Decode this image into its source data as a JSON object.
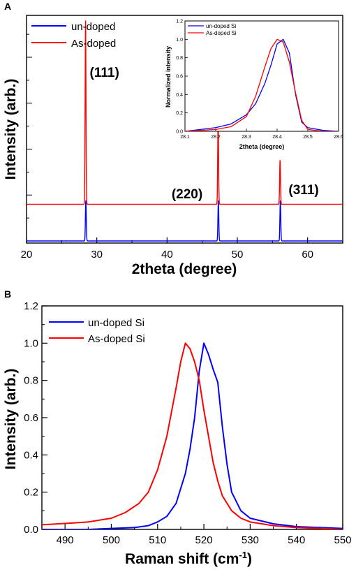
{
  "chart_data": [
    {
      "panel": "A",
      "type": "line",
      "xlabel": "2theta (degree)",
      "ylabel": "Intensity (arb.)",
      "xlim": [
        20,
        65
      ],
      "xticks": [
        "20",
        "30",
        "40",
        "50",
        "60"
      ],
      "yticks_labeled": false,
      "legend": {
        "position": "top-left",
        "entries": [
          "un-doped",
          "As-doped"
        ]
      },
      "annotations": [
        {
          "text": "(111)",
          "x": 28.4
        },
        {
          "text": "(220)",
          "x": 47.3
        },
        {
          "text": "(311)",
          "x": 56.1
        }
      ],
      "series": [
        {
          "name": "un-doped",
          "color": "#0000ff",
          "baseline": 0.0,
          "peaks": [
            {
              "x": 28.44,
              "height": 0.22
            },
            {
              "x": 47.3,
              "height": 0.22
            },
            {
              "x": 56.12,
              "height": 0.22
            }
          ]
        },
        {
          "name": "As-doped",
          "color": "#ff0000",
          "baseline": 0.2,
          "peaks": [
            {
              "x": 28.4,
              "height": 1.0
            },
            {
              "x": 47.27,
              "height": 0.48
            },
            {
              "x": 56.08,
              "height": 0.24
            }
          ]
        }
      ],
      "inset": {
        "type": "line",
        "xlabel": "2theta (degree)",
        "ylabel": "Normalized intensity",
        "xlim": [
          28.1,
          28.6
        ],
        "ylim": [
          0.0,
          1.2
        ],
        "xticks": [
          "28.1",
          "28.2",
          "28.3",
          "28.4",
          "28.5",
          "28.6"
        ],
        "yticks": [
          "0.0",
          "0.2",
          "0.4",
          "0.6",
          "0.8",
          "1.0",
          "1.2"
        ],
        "legend": {
          "position": "top-left",
          "entries": [
            "un-doped Si",
            "As-doped Si"
          ]
        },
        "series": [
          {
            "name": "un-doped Si",
            "color": "#0000ff",
            "x": [
              28.1,
              28.15,
              28.2,
              28.25,
              28.3,
              28.33,
              28.36,
              28.38,
              28.4,
              28.42,
              28.44,
              28.46,
              28.48,
              28.5,
              28.55,
              28.6
            ],
            "y": [
              0.0,
              0.02,
              0.04,
              0.08,
              0.18,
              0.3,
              0.52,
              0.72,
              0.95,
              1.0,
              0.85,
              0.4,
              0.1,
              0.04,
              0.01,
              0.0
            ]
          },
          {
            "name": "As-doped Si",
            "color": "#ff0000",
            "x": [
              28.1,
              28.15,
              28.2,
              28.25,
              28.3,
              28.33,
              28.36,
              28.38,
              28.4,
              28.42,
              28.44,
              28.46,
              28.48,
              28.5,
              28.55,
              28.6
            ],
            "y": [
              0.0,
              0.01,
              0.02,
              0.05,
              0.16,
              0.38,
              0.7,
              0.9,
              1.0,
              0.97,
              0.75,
              0.42,
              0.12,
              0.02,
              0.0,
              0.0
            ]
          }
        ]
      }
    },
    {
      "panel": "B",
      "type": "line",
      "xlabel": "Raman shift (cm",
      "xlabel_sup": "-1",
      "xlabel_suffix": ")",
      "ylabel": "Intensity (arb.)",
      "xlim": [
        485,
        550
      ],
      "ylim": [
        0.0,
        1.2
      ],
      "xticks": [
        "490",
        "500",
        "510",
        "520",
        "530",
        "540",
        "550"
      ],
      "yticks": [
        "0.0",
        "0.2",
        "0.4",
        "0.6",
        "0.8",
        "1.0",
        "1.2"
      ],
      "legend": {
        "position": "top-left",
        "entries": [
          "un-doped Si",
          "As-doped Si"
        ]
      },
      "series": [
        {
          "name": "un-doped Si",
          "color": "#0000ff",
          "x": [
            485,
            490,
            495,
            500,
            505,
            508,
            510,
            512,
            514,
            516,
            517,
            518,
            519,
            520,
            521,
            522,
            523,
            524,
            525,
            526,
            528,
            530,
            535,
            540,
            545,
            550
          ],
          "y": [
            0.0,
            0.0,
            0.0,
            0.005,
            0.01,
            0.02,
            0.04,
            0.07,
            0.14,
            0.3,
            0.43,
            0.6,
            0.85,
            1.0,
            0.94,
            0.86,
            0.79,
            0.55,
            0.35,
            0.2,
            0.1,
            0.06,
            0.03,
            0.015,
            0.01,
            0.005
          ]
        },
        {
          "name": "As-doped Si",
          "color": "#ff0000",
          "x": [
            485,
            490,
            495,
            500,
            503,
            506,
            508,
            510,
            512,
            514,
            515,
            516,
            517,
            518,
            519,
            520,
            521,
            522,
            523,
            524,
            526,
            528,
            530,
            535,
            540,
            545,
            550
          ],
          "y": [
            0.025,
            0.032,
            0.04,
            0.06,
            0.09,
            0.14,
            0.2,
            0.32,
            0.5,
            0.76,
            0.9,
            1.0,
            0.97,
            0.9,
            0.8,
            0.64,
            0.5,
            0.36,
            0.26,
            0.18,
            0.1,
            0.06,
            0.04,
            0.02,
            0.01,
            0.005,
            0.0
          ]
        }
      ]
    }
  ]
}
